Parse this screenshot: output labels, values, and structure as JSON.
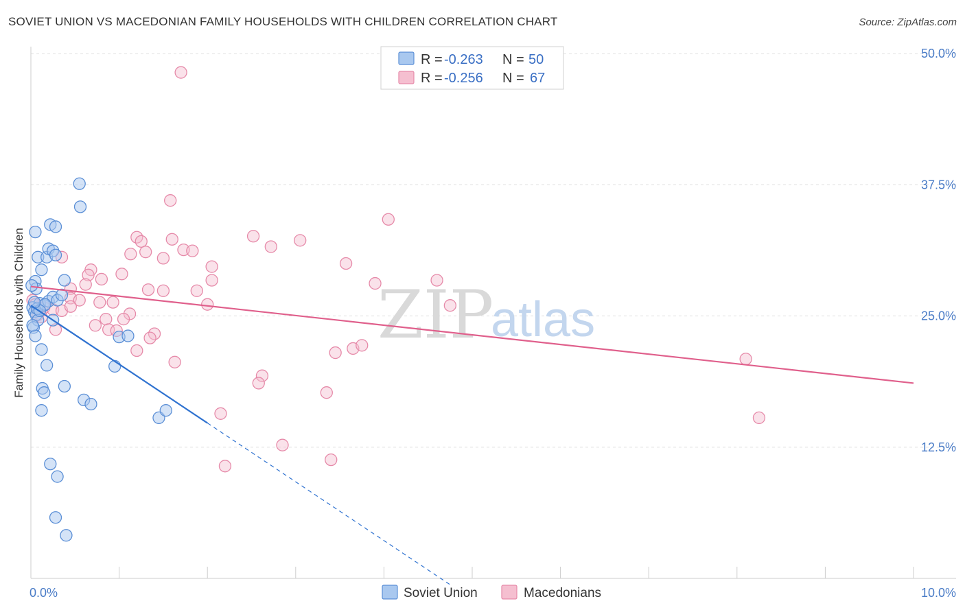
{
  "header": {
    "title": "SOVIET UNION VS MACEDONIAN FAMILY HOUSEHOLDS WITH CHILDREN CORRELATION CHART",
    "source": "Source: ZipAtlas.com"
  },
  "watermark": {
    "zip": "ZIP",
    "atlas": "atlas"
  },
  "legend": {
    "r_label": "R =",
    "n_label": "N =",
    "series": [
      {
        "r": "-0.263",
        "n": "50"
      },
      {
        "r": "-0.256",
        "n": "67"
      }
    ]
  },
  "colors": {
    "soviet_fill": "#a9c8ef",
    "soviet_stroke": "#5b8fd6",
    "soviet_line": "#2f72d0",
    "macedonian_fill": "#f5bfd0",
    "macedonian_stroke": "#e68aa9",
    "macedonian_line": "#e0608c"
  },
  "chart_data": {
    "type": "scatter",
    "title": "SOVIET UNION VS MACEDONIAN FAMILY HOUSEHOLDS WITH CHILDREN CORRELATION CHART",
    "xlabel": "",
    "ylabel": "Family Households with Children",
    "xlim": [
      0,
      10
    ],
    "ylim": [
      0,
      50
    ],
    "x_tick_labels": [
      "0.0%",
      "10.0%"
    ],
    "y_tick_labels": [
      "12.5%",
      "25.0%",
      "37.5%",
      "50.0%"
    ],
    "y_ticks": [
      12.5,
      25,
      37.5,
      50
    ],
    "grid": true,
    "series": [
      {
        "name": "Soviet Union",
        "r": -0.263,
        "n": 50,
        "trend": {
          "x0": 0.0,
          "y0": 26.0,
          "x1": 2.0,
          "y1": 14.8,
          "dash_to_x": 4.75
        },
        "points": [
          [
            0.05,
            33.0
          ],
          [
            0.08,
            30.6
          ],
          [
            0.12,
            29.4
          ],
          [
            0.18,
            30.6
          ],
          [
            0.2,
            31.4
          ],
          [
            0.22,
            33.7
          ],
          [
            0.25,
            31.2
          ],
          [
            0.28,
            30.8
          ],
          [
            0.05,
            28.3
          ],
          [
            0.06,
            27.6
          ],
          [
            0.1,
            26.2
          ],
          [
            0.15,
            26.0
          ],
          [
            0.2,
            26.4
          ],
          [
            0.25,
            26.8
          ],
          [
            0.3,
            26.5
          ],
          [
            0.35,
            27.0
          ],
          [
            0.02,
            25.8
          ],
          [
            0.04,
            25.4
          ],
          [
            0.06,
            25.1
          ],
          [
            0.08,
            24.6
          ],
          [
            0.03,
            23.9
          ],
          [
            0.05,
            23.1
          ],
          [
            0.25,
            24.6
          ],
          [
            0.12,
            21.8
          ],
          [
            0.18,
            20.3
          ],
          [
            0.38,
            28.4
          ],
          [
            0.55,
            37.6
          ],
          [
            0.56,
            35.4
          ],
          [
            0.28,
            33.5
          ],
          [
            0.13,
            18.1
          ],
          [
            0.15,
            17.7
          ],
          [
            0.38,
            18.3
          ],
          [
            0.6,
            17.0
          ],
          [
            0.68,
            16.6
          ],
          [
            0.12,
            16.0
          ],
          [
            0.22,
            10.9
          ],
          [
            0.3,
            9.7
          ],
          [
            0.28,
            5.8
          ],
          [
            0.4,
            4.1
          ],
          [
            1.0,
            23.0
          ],
          [
            1.1,
            23.1
          ],
          [
            0.95,
            20.2
          ],
          [
            1.45,
            15.3
          ],
          [
            1.53,
            16.0
          ],
          [
            0.02,
            24.1
          ],
          [
            0.07,
            25.7
          ],
          [
            0.16,
            26.1
          ],
          [
            0.1,
            25.5
          ],
          [
            0.01,
            27.9
          ],
          [
            0.04,
            26.3
          ]
        ]
      },
      {
        "name": "Macedonians",
        "r": -0.256,
        "n": 67,
        "trend": {
          "x0": 0.0,
          "y0": 27.8,
          "x1": 10.0,
          "y1": 18.6
        },
        "points": [
          [
            1.7,
            48.2
          ],
          [
            1.58,
            36.0
          ],
          [
            4.05,
            34.2
          ],
          [
            1.2,
            32.5
          ],
          [
            1.25,
            32.1
          ],
          [
            1.6,
            32.3
          ],
          [
            2.52,
            32.6
          ],
          [
            3.05,
            32.2
          ],
          [
            2.72,
            31.6
          ],
          [
            1.3,
            31.1
          ],
          [
            1.13,
            30.9
          ],
          [
            1.73,
            31.3
          ],
          [
            1.83,
            31.2
          ],
          [
            1.5,
            30.5
          ],
          [
            0.35,
            30.6
          ],
          [
            2.05,
            29.7
          ],
          [
            3.57,
            30.0
          ],
          [
            0.68,
            29.4
          ],
          [
            0.65,
            28.9
          ],
          [
            1.03,
            29.0
          ],
          [
            0.8,
            28.5
          ],
          [
            2.05,
            28.4
          ],
          [
            0.62,
            28.0
          ],
          [
            3.9,
            28.1
          ],
          [
            4.6,
            28.4
          ],
          [
            0.45,
            27.6
          ],
          [
            1.33,
            27.5
          ],
          [
            1.5,
            27.4
          ],
          [
            1.88,
            27.4
          ],
          [
            0.45,
            26.7
          ],
          [
            0.55,
            26.5
          ],
          [
            0.78,
            26.3
          ],
          [
            0.93,
            26.3
          ],
          [
            2.0,
            26.1
          ],
          [
            4.75,
            26.0
          ],
          [
            0.1,
            25.9
          ],
          [
            0.15,
            25.8
          ],
          [
            0.25,
            25.6
          ],
          [
            0.35,
            25.5
          ],
          [
            0.45,
            25.9
          ],
          [
            1.12,
            25.2
          ],
          [
            0.08,
            25.1
          ],
          [
            0.12,
            24.9
          ],
          [
            0.85,
            24.7
          ],
          [
            1.05,
            24.7
          ],
          [
            0.73,
            24.1
          ],
          [
            0.88,
            23.7
          ],
          [
            0.97,
            23.6
          ],
          [
            0.28,
            23.7
          ],
          [
            1.4,
            23.3
          ],
          [
            1.35,
            22.9
          ],
          [
            1.2,
            21.7
          ],
          [
            3.45,
            21.5
          ],
          [
            3.65,
            21.9
          ],
          [
            3.75,
            22.2
          ],
          [
            1.63,
            20.6
          ],
          [
            2.62,
            19.3
          ],
          [
            2.58,
            18.6
          ],
          [
            3.35,
            17.7
          ],
          [
            8.1,
            20.9
          ],
          [
            2.15,
            15.7
          ],
          [
            8.25,
            15.3
          ],
          [
            2.85,
            12.7
          ],
          [
            2.2,
            10.7
          ],
          [
            3.4,
            11.3
          ],
          [
            0.02,
            26.5
          ],
          [
            0.05,
            26.1
          ]
        ]
      }
    ]
  },
  "bottom_legend": {
    "items": [
      "Soviet Union",
      "Macedonians"
    ]
  }
}
